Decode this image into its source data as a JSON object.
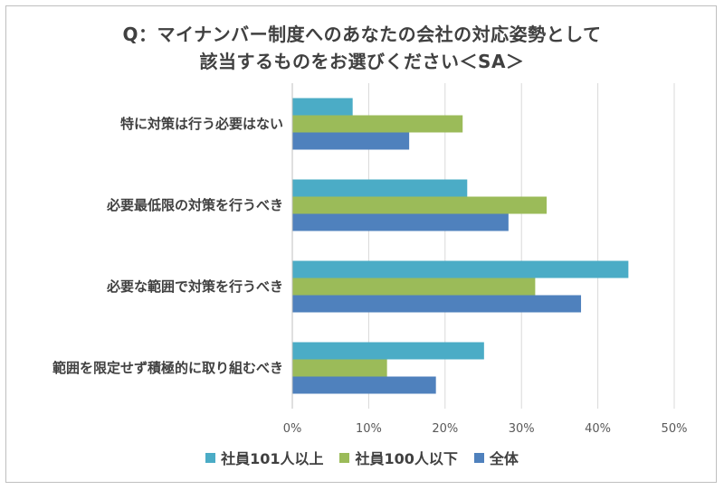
{
  "chart_data": {
    "type": "bar",
    "orientation": "horizontal",
    "title": [
      "Q：マイナンバー制度へのあなたの会社の対応姿勢として",
      "該当するものをお選びください＜SA＞"
    ],
    "categories": [
      "特に対策は行う必要はない",
      "必要最低限の対策を行うべき",
      "必要な範囲で対策を行うべき",
      "範囲を限定せず積極的に取り組むべき"
    ],
    "series": [
      {
        "name": "社員101人以上",
        "color": "#4bacc6",
        "values": [
          7.9,
          22.9,
          44.0,
          25.1
        ]
      },
      {
        "name": "社員100人以下",
        "color": "#9bbb59",
        "values": [
          22.3,
          33.3,
          31.8,
          12.4
        ]
      },
      {
        "name": "全体",
        "color": "#4f81bd",
        "values": [
          15.3,
          28.3,
          37.8,
          18.8
        ]
      }
    ],
    "xlim": [
      0,
      50
    ],
    "xticks": [
      0,
      10,
      20,
      30,
      40,
      50
    ],
    "xtick_labels": [
      "0%",
      "10%",
      "20%",
      "30%",
      "40%",
      "50%"
    ],
    "grid": true,
    "legend_position": "bottom"
  }
}
